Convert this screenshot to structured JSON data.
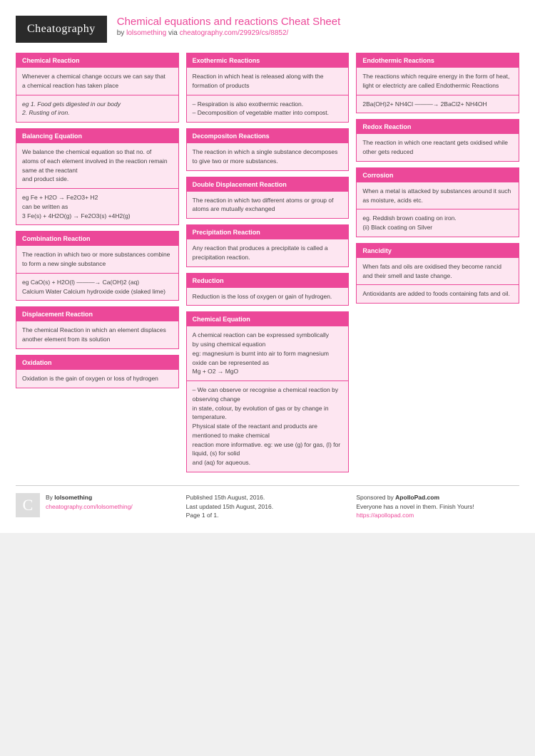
{
  "colors": {
    "accent": "#ec4899",
    "panel": "#fde6f1",
    "logo_bg": "#2a2a2a"
  },
  "header": {
    "logo": "Cheatography",
    "title": "Chemical equations and reactions Cheat Sheet",
    "by": "by ",
    "author": "lolsomething",
    "via": " via ",
    "url": "cheatography.com/29929/cs/8852/"
  },
  "columns": [
    [
      {
        "title": "Chemical Reaction",
        "sections": [
          {
            "text": "Whenever a chemical change occurs we can say that\na chemical reaction has taken place"
          },
          {
            "text": "eg 1. Food gets digested in our body\n2. Rusting of iron.",
            "italic": true
          }
        ]
      },
      {
        "title": "Balancing Equation",
        "sections": [
          {
            "text": "We balance the chemical equation so that no. of\natoms of each element involved in the reaction remain same at the reactant\nand product side."
          },
          {
            "text": "eg Fe + H2O → Fe2O3+ H2\ncan be written as\n3 Fe(s) + 4H2O(g) → Fe2O3(s) +4H2(g)"
          }
        ]
      },
      {
        "title": "Combination Reaction",
        "sections": [
          {
            "text": "The reaction in which two or more substances combine to form a new single substance"
          },
          {
            "text": "eg CaO(s) + H2O(l) ———→ Ca(OH)2 (aq)\nCalcium Water Calcium hydroxide oxide (slaked lime)"
          }
        ]
      },
      {
        "title": "Displacement Reaction",
        "sections": [
          {
            "text": "The chemical Reaction in which an element displaces another element from its solution"
          }
        ]
      },
      {
        "title": "Oxidation",
        "sections": [
          {
            "text": "Oxidation is the gain of oxygen or loss of hydrogen"
          }
        ]
      }
    ],
    [
      {
        "title": "Exothermic Reactions",
        "sections": [
          {
            "text": "Reaction in which heat is released along with the\nformation of products"
          },
          {
            "text": "– Respiration is also exothermic reaction.\n– Decomposition of vegetable matter into compost."
          }
        ]
      },
      {
        "title": "Decompositon Reactions",
        "sections": [
          {
            "text": "The reaction in which a single substance decomposes to give two or more substances."
          }
        ]
      },
      {
        "title": "Double Displacement Reaction",
        "sections": [
          {
            "text": "The reaction in which two different atoms or group of atoms are mutually exchanged"
          }
        ]
      },
      {
        "title": "Precipitation Reaction",
        "sections": [
          {
            "text": "Any reaction that produces a precipitate is called a precipitation reaction."
          }
        ]
      },
      {
        "title": "Reduction",
        "sections": [
          {
            "text": "Reduction is the loss of oxygen or gain of hydrogen."
          }
        ]
      },
      {
        "title": "Chemical Equation",
        "sections": [
          {
            "text": "A chemical reaction can be expressed symbolically\nby using chemical equation\neg: magnesium is burnt into air to form magnesium oxide can be represented as\nMg + O2 → MgO"
          },
          {
            "text": "– We can observe or recognise a chemical reaction by observing change\nin state, colour, by evolution of gas or by change in temperature.\nPhysical state of the reactant and products are mentioned to make chemical\nreaction more informative. eg: we use (g) for gas, (l) for liquid, (s) for solid\nand (aq) for aqueous."
          }
        ]
      }
    ],
    [
      {
        "title": "Endothermic Reactions",
        "sections": [
          {
            "text": "The reactions which require energy in the form of heat, light or electricty are called Endothermic Reactions"
          },
          {
            "text": "2Ba(OH)2+ NH4Cl ———→ 2BaCl2+ NH4OH"
          }
        ]
      },
      {
        "title": "Redox Reaction",
        "sections": [
          {
            "text": "The reaction in which one reactant gets oxidised while other gets reduced"
          }
        ]
      },
      {
        "title": "Corrosion",
        "sections": [
          {
            "text": "When a metal is attacked by substances around it such as moisture, acids etc."
          },
          {
            "text": "eg. Reddish brown coating on iron.\n(ii) Black coating on Silver"
          }
        ]
      },
      {
        "title": "Rancidity",
        "sections": [
          {
            "text": "When fats and oils are oxidised they become rancid and their smell and taste change."
          },
          {
            "text": "Antioxidants are added to foods containing fats and oil."
          }
        ]
      }
    ]
  ],
  "footer": {
    "left": {
      "icon": "C",
      "by": "By ",
      "author": "lolsomething",
      "url": "cheatography.com/lolsomething/"
    },
    "mid": {
      "l1": "Published 15th August, 2016.",
      "l2": "Last updated 15th August, 2016.",
      "l3": "Page 1 of 1."
    },
    "right": {
      "l1a": "Sponsored by ",
      "l1b": "ApolloPad.com",
      "l2": "Everyone has a novel in them. Finish Yours!",
      "url": "https://apollopad.com"
    }
  }
}
